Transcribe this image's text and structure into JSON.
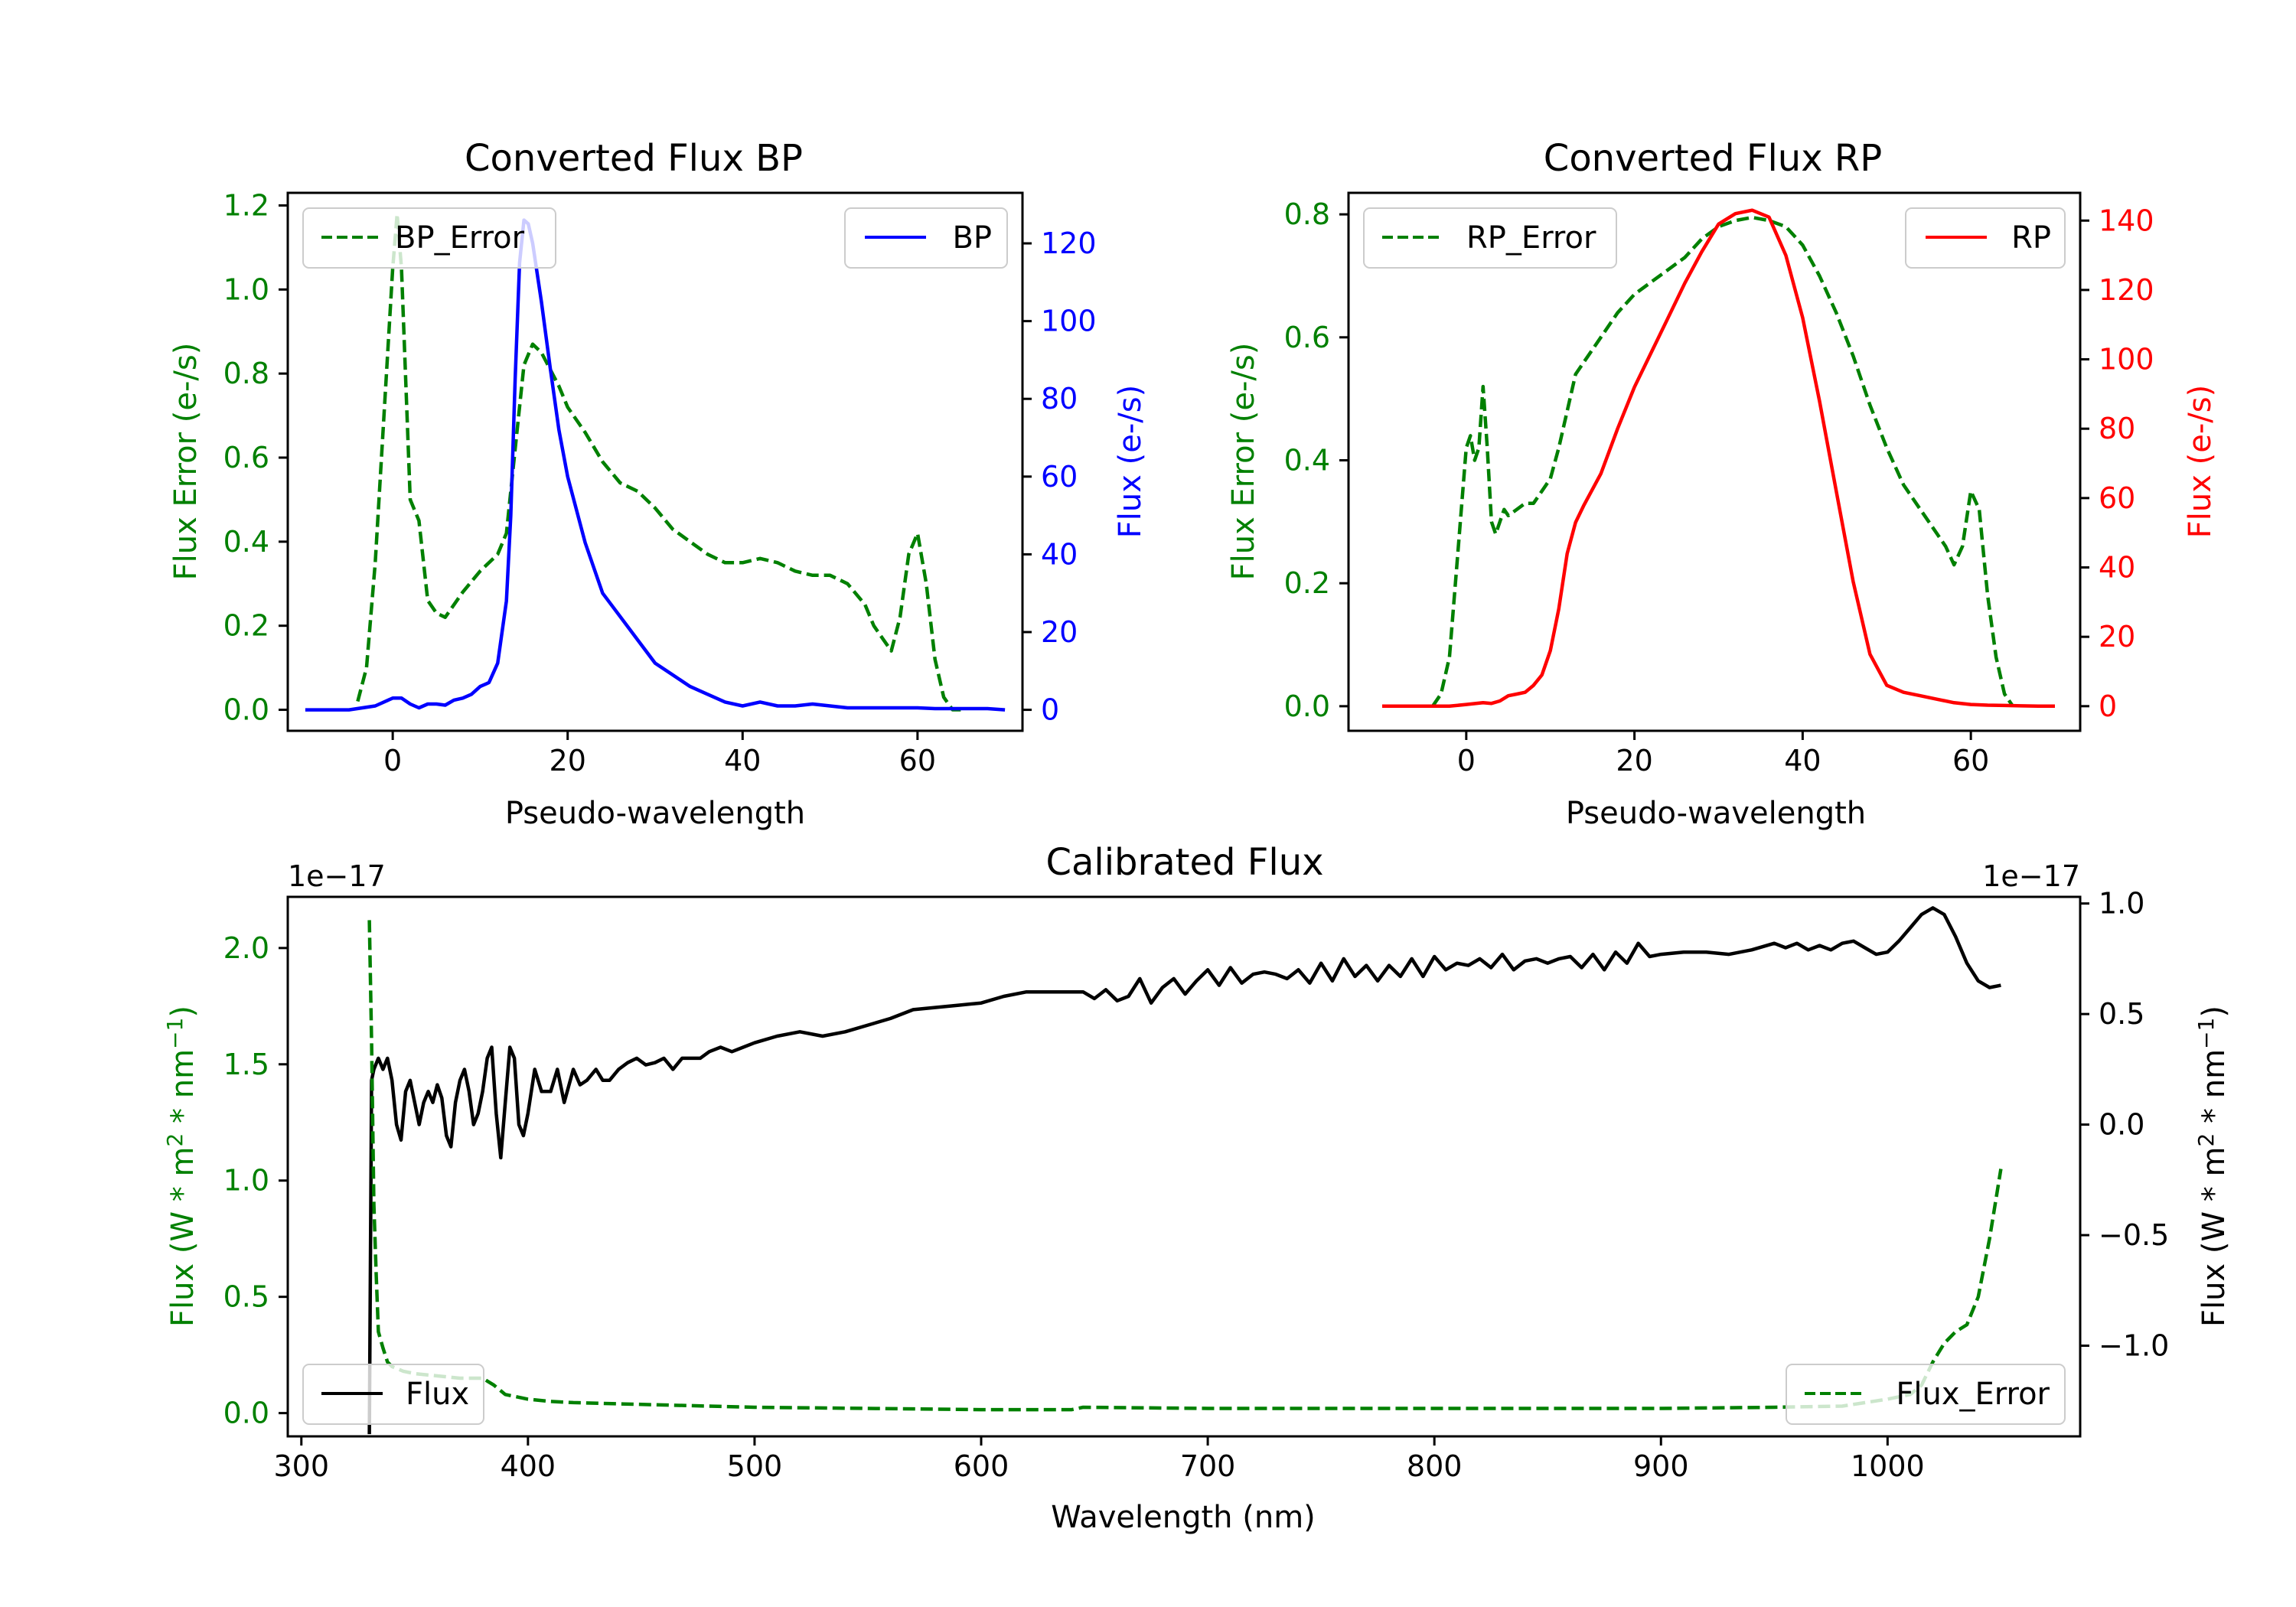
{
  "chart_data": [
    {
      "id": "bp",
      "type": "line",
      "title": "Converted Flux BP",
      "xlabel": "Pseudo-wavelength",
      "xlim": [
        -12,
        72
      ],
      "x_ticks": [
        0,
        20,
        40,
        60
      ],
      "left_axis": {
        "label": "Flux Error (e-/s)",
        "color": "#008000",
        "ylim": [
          -0.05,
          1.23
        ],
        "ticks": [
          0.0,
          0.2,
          0.4,
          0.6,
          0.8,
          1.0,
          1.2
        ],
        "tick_labels": [
          "0.0",
          "0.2",
          "0.4",
          "0.6",
          "0.8",
          "1.0",
          "1.2"
        ]
      },
      "right_axis": {
        "label": "Flux (e-/s)",
        "color": "#0000ff",
        "ylim": [
          -5.4,
          133
        ],
        "ticks": [
          0,
          20,
          40,
          60,
          80,
          100,
          120
        ],
        "tick_labels": [
          "0",
          "20",
          "40",
          "60",
          "80",
          "100",
          "120"
        ]
      },
      "series": [
        {
          "name": "BP_Error",
          "axis": "left",
          "color": "#008000",
          "dash": "dashed",
          "x": [
            -4,
            -3,
            -2,
            -1,
            0,
            0.5,
            1,
            2,
            3,
            4,
            5,
            6,
            8,
            10,
            12,
            13,
            14,
            15,
            16,
            17,
            18,
            19,
            20,
            22,
            24,
            26,
            28,
            30,
            32,
            34,
            36,
            38,
            40,
            42,
            44,
            46,
            48,
            50,
            52,
            54,
            55,
            56,
            57,
            58,
            59,
            60,
            61,
            62,
            63,
            64,
            65
          ],
          "values": [
            0.02,
            0.1,
            0.35,
            0.7,
            1.05,
            1.18,
            1.05,
            0.5,
            0.45,
            0.26,
            0.23,
            0.22,
            0.28,
            0.33,
            0.37,
            0.42,
            0.62,
            0.82,
            0.87,
            0.85,
            0.81,
            0.77,
            0.72,
            0.66,
            0.59,
            0.54,
            0.52,
            0.48,
            0.43,
            0.4,
            0.37,
            0.35,
            0.35,
            0.36,
            0.35,
            0.33,
            0.32,
            0.32,
            0.3,
            0.25,
            0.2,
            0.17,
            0.14,
            0.22,
            0.37,
            0.42,
            0.3,
            0.12,
            0.03,
            0.0,
            0.0
          ]
        },
        {
          "name": "BP",
          "axis": "right",
          "color": "#0000ff",
          "dash": "solid",
          "x": [
            -10,
            -5,
            -2,
            0,
            1,
            2,
            3,
            4,
            5,
            6,
            7,
            8,
            9,
            10,
            11,
            12,
            13,
            13.5,
            14,
            14.5,
            15,
            15.5,
            16,
            17,
            18,
            19,
            20,
            22,
            24,
            26,
            28,
            30,
            32,
            34,
            35,
            36,
            38,
            40,
            42,
            44,
            46,
            48,
            50,
            52,
            54,
            56,
            58,
            60,
            62,
            64,
            66,
            68,
            70
          ],
          "values": [
            0,
            0,
            1,
            3,
            3,
            1.5,
            0.5,
            1.5,
            1.5,
            1.2,
            2.5,
            3,
            4,
            6,
            7,
            12,
            28,
            50,
            85,
            115,
            126,
            125,
            120,
            105,
            88,
            72,
            60,
            43,
            30,
            24,
            18,
            12,
            9,
            6,
            5,
            4,
            2,
            1,
            2,
            1,
            1,
            1.5,
            1,
            0.5,
            0.5,
            0.5,
            0.5,
            0.5,
            0.3,
            0.3,
            0.3,
            0.3,
            0
          ]
        }
      ],
      "legends": [
        {
          "label": "BP_Error",
          "loc": "upper left"
        },
        {
          "label": "BP",
          "loc": "upper right"
        }
      ]
    },
    {
      "id": "rp",
      "type": "line",
      "title": "Converted Flux RP",
      "xlabel": "Pseudo-wavelength",
      "xlim": [
        -14,
        73
      ],
      "x_ticks": [
        0,
        20,
        40,
        60
      ],
      "left_axis": {
        "label": "Flux Error (e-/s)",
        "color": "#008000",
        "ylim": [
          -0.04,
          0.835
        ],
        "ticks": [
          0.0,
          0.2,
          0.4,
          0.6,
          0.8
        ],
        "tick_labels": [
          "0.0",
          "0.2",
          "0.4",
          "0.6",
          "0.8"
        ]
      },
      "right_axis": {
        "label": "Flux (e-/s)",
        "color": "#ff0000",
        "ylim": [
          -7.1,
          148
        ],
        "ticks": [
          0,
          20,
          40,
          60,
          80,
          100,
          120,
          140
        ],
        "tick_labels": [
          "0",
          "20",
          "40",
          "60",
          "80",
          "100",
          "120",
          "140"
        ]
      },
      "series": [
        {
          "name": "RP_Error",
          "axis": "left",
          "color": "#008000",
          "dash": "dashed",
          "x": [
            -4,
            -3,
            -2,
            -1,
            0,
            0.5,
            1,
            1.5,
            2,
            2.5,
            3,
            3.5,
            4,
            4.5,
            5,
            6,
            7,
            8,
            9,
            10,
            11,
            12,
            13,
            14,
            16,
            18,
            20,
            22,
            24,
            26,
            28,
            30,
            32,
            34,
            36,
            38,
            40,
            42,
            44,
            46,
            48,
            50,
            52,
            54,
            55,
            56,
            57,
            58,
            59,
            60,
            61,
            62,
            63,
            64,
            65
          ],
          "values": [
            0.0,
            0.02,
            0.08,
            0.25,
            0.42,
            0.44,
            0.4,
            0.42,
            0.52,
            0.42,
            0.3,
            0.28,
            0.3,
            0.32,
            0.31,
            0.32,
            0.33,
            0.33,
            0.35,
            0.37,
            0.42,
            0.48,
            0.54,
            0.56,
            0.6,
            0.64,
            0.67,
            0.69,
            0.71,
            0.73,
            0.76,
            0.78,
            0.79,
            0.795,
            0.79,
            0.78,
            0.75,
            0.7,
            0.64,
            0.57,
            0.49,
            0.42,
            0.36,
            0.32,
            0.3,
            0.28,
            0.26,
            0.23,
            0.26,
            0.35,
            0.32,
            0.18,
            0.08,
            0.02,
            0.0
          ]
        },
        {
          "name": "RP",
          "axis": "right",
          "color": "#ff0000",
          "dash": "solid",
          "x": [
            -10,
            -6,
            -2,
            0,
            2,
            3,
            4,
            5,
            6,
            7,
            8,
            9,
            10,
            11,
            12,
            13,
            14,
            16,
            18,
            20,
            22,
            24,
            26,
            28,
            30,
            32,
            34,
            35,
            36,
            38,
            40,
            42,
            44,
            46,
            48,
            50,
            52,
            54,
            56,
            58,
            60,
            62,
            64,
            66,
            68,
            70
          ],
          "values": [
            0,
            0,
            0,
            0.5,
            1,
            0.8,
            1.5,
            3,
            3.5,
            4,
            6,
            9,
            16,
            28,
            44,
            53,
            58,
            67,
            80,
            92,
            102,
            112,
            122,
            131,
            139,
            142,
            143,
            142,
            141,
            130,
            112,
            88,
            62,
            36,
            15,
            6,
            4,
            3,
            2,
            1,
            0.5,
            0.3,
            0.2,
            0.1,
            0,
            0
          ]
        }
      ],
      "legends": [
        {
          "label": "RP_Error",
          "loc": "upper left"
        },
        {
          "label": "RP",
          "loc": "upper right"
        }
      ]
    },
    {
      "id": "cal",
      "type": "line",
      "title": "Calibrated Flux",
      "xlabel": "Wavelength (nm)",
      "xlim": [
        294,
        1085
      ],
      "x_ticks": [
        300,
        400,
        500,
        600,
        700,
        800,
        900,
        1000
      ],
      "left_axis": {
        "label": "Flux (W * m$^2$ * nm$^{-1}$)",
        "color": "#008000",
        "ylim": [
          -1e-18,
          2.22e-17
        ],
        "offset_text": "1e−17",
        "ticks": [
          0,
          5e-18,
          1e-17,
          1.5e-17,
          2e-17
        ],
        "tick_labels": [
          "0.0",
          "0.5",
          "1.0",
          "1.5",
          "2.0"
        ]
      },
      "right_axis": {
        "label": "Flux (W * m$^2$ * nm$^{-1}$)",
        "color": "#000000",
        "ylim": [
          -1.41e-17,
          1.03e-17
        ],
        "offset_text": "1e−17",
        "ticks": [
          -1e-17,
          -5e-18,
          0,
          5e-18,
          1e-17
        ],
        "tick_labels": [
          "−1.0",
          "−0.5",
          "0.0",
          "0.5",
          "1.0"
        ]
      },
      "series": [
        {
          "name": "Flux",
          "axis": "right",
          "color": "#000000",
          "dash": "solid",
          "x": [
            330,
            331,
            332,
            334,
            336,
            338,
            340,
            342,
            344,
            346,
            348,
            350,
            352,
            354,
            356,
            358,
            360,
            362,
            364,
            366,
            368,
            370,
            372,
            374,
            376,
            378,
            380,
            382,
            384,
            386,
            388,
            390,
            392,
            394,
            396,
            398,
            400,
            403,
            406,
            410,
            413,
            416,
            420,
            423,
            426,
            430,
            433,
            436,
            440,
            444,
            448,
            452,
            456,
            460,
            464,
            468,
            472,
            476,
            480,
            485,
            490,
            495,
            500,
            510,
            520,
            530,
            540,
            550,
            560,
            570,
            580,
            590,
            600,
            610,
            620,
            630,
            635,
            640,
            645,
            650,
            655,
            660,
            665,
            670,
            675,
            680,
            685,
            690,
            695,
            700,
            705,
            710,
            715,
            720,
            725,
            730,
            735,
            740,
            745,
            750,
            755,
            760,
            765,
            770,
            775,
            780,
            785,
            790,
            795,
            800,
            805,
            810,
            815,
            820,
            825,
            830,
            835,
            840,
            845,
            850,
            855,
            860,
            865,
            870,
            875,
            880,
            885,
            890,
            895,
            900,
            910,
            920,
            930,
            940,
            950,
            955,
            960,
            965,
            970,
            975,
            980,
            985,
            990,
            995,
            1000,
            1005,
            1010,
            1015,
            1020,
            1025,
            1030,
            1035,
            1040,
            1045,
            1050
          ],
          "values": [
            -1.4,
            0.2,
            0.25,
            0.3,
            0.25,
            0.3,
            0.2,
            0.0,
            -0.07,
            0.15,
            0.2,
            0.1,
            0.0,
            0.1,
            0.15,
            0.1,
            0.18,
            0.12,
            -0.05,
            -0.1,
            0.1,
            0.2,
            0.25,
            0.15,
            0.0,
            0.05,
            0.15,
            0.3,
            0.35,
            0.05,
            -0.15,
            0.1,
            0.35,
            0.3,
            0.0,
            -0.05,
            0.05,
            0.25,
            0.15,
            0.15,
            0.25,
            0.1,
            0.25,
            0.18,
            0.2,
            0.25,
            0.2,
            0.2,
            0.25,
            0.28,
            0.3,
            0.27,
            0.28,
            0.3,
            0.25,
            0.3,
            0.3,
            0.3,
            0.33,
            0.35,
            0.33,
            0.35,
            0.37,
            0.4,
            0.42,
            0.4,
            0.42,
            0.45,
            0.48,
            0.52,
            0.53,
            0.54,
            0.55,
            0.58,
            0.6,
            0.6,
            0.6,
            0.6,
            0.6,
            0.57,
            0.61,
            0.56,
            0.58,
            0.66,
            0.55,
            0.62,
            0.66,
            0.59,
            0.65,
            0.7,
            0.63,
            0.71,
            0.64,
            0.68,
            0.69,
            0.68,
            0.66,
            0.7,
            0.64,
            0.73,
            0.65,
            0.75,
            0.67,
            0.72,
            0.65,
            0.72,
            0.67,
            0.75,
            0.67,
            0.76,
            0.7,
            0.73,
            0.72,
            0.75,
            0.71,
            0.77,
            0.7,
            0.74,
            0.75,
            0.73,
            0.75,
            0.76,
            0.71,
            0.77,
            0.7,
            0.78,
            0.73,
            0.82,
            0.76,
            0.77,
            0.78,
            0.78,
            0.77,
            0.79,
            0.82,
            0.8,
            0.82,
            0.79,
            0.81,
            0.79,
            0.82,
            0.83,
            0.8,
            0.77,
            0.78,
            0.83,
            0.89,
            0.95,
            0.98,
            0.95,
            0.85,
            0.73,
            0.65,
            0.62,
            0.63
          ],
          "values_scale": 1e-17
        },
        {
          "name": "Flux_Error",
          "axis": "left",
          "color": "#008000",
          "dash": "dashed",
          "x": [
            330,
            331,
            332,
            333,
            334,
            336,
            338,
            340,
            345,
            350,
            360,
            370,
            380,
            385,
            390,
            400,
            410,
            420,
            440,
            460,
            480,
            500,
            550,
            600,
            640,
            645,
            700,
            750,
            800,
            850,
            900,
            950,
            980,
            1000,
            1010,
            1015,
            1020,
            1025,
            1030,
            1035,
            1040,
            1045,
            1050
          ],
          "values": [
            2.12,
            1.6,
            0.9,
            0.6,
            0.35,
            0.28,
            0.22,
            0.2,
            0.18,
            0.17,
            0.16,
            0.15,
            0.15,
            0.12,
            0.08,
            0.06,
            0.05,
            0.045,
            0.04,
            0.035,
            0.03,
            0.025,
            0.02,
            0.015,
            0.015,
            0.025,
            0.02,
            0.02,
            0.02,
            0.02,
            0.02,
            0.025,
            0.03,
            0.06,
            0.08,
            0.12,
            0.22,
            0.3,
            0.35,
            0.38,
            0.5,
            0.75,
            1.05
          ],
          "values_scale": 1e-17
        }
      ],
      "legends": [
        {
          "label": "Flux",
          "loc": "lower left"
        },
        {
          "label": "Flux_Error",
          "loc": "lower right"
        }
      ]
    }
  ]
}
